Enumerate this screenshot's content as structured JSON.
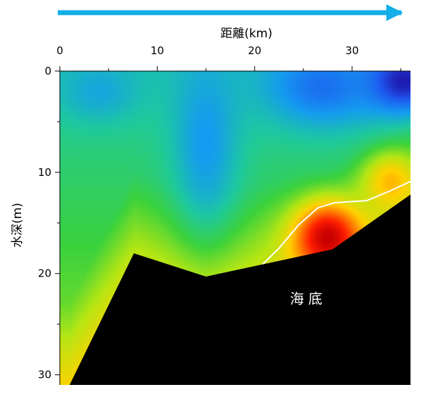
{
  "chart_data": {
    "type": "heatmap",
    "title": "",
    "xlabel": "距離(km)",
    "ylabel": "水深(m)",
    "xlim": [
      0,
      36
    ],
    "ylim": [
      0,
      31
    ],
    "x_ticks": [
      0,
      10,
      20,
      30
    ],
    "y_ticks": [
      0,
      10,
      20,
      30
    ],
    "x_axis_position": "top",
    "y_axis_inverted": true,
    "grid": false,
    "legend": "none",
    "direction_arrow": {
      "color": "#12aee8",
      "points": "right"
    },
    "annotations": [
      {
        "text": "海底",
        "x": 25.5,
        "y": 22.5
      }
    ],
    "seafloor": {
      "color": "#000000",
      "profile": [
        {
          "distance": 1.0,
          "depth": 31.0
        },
        {
          "distance": 7.6,
          "depth": 18.0
        },
        {
          "distance": 15.0,
          "depth": 20.3
        },
        {
          "distance": 28.0,
          "depth": 17.6
        },
        {
          "distance": 36.0,
          "depth": 12.2
        }
      ]
    },
    "contour_line": {
      "color": "#ffffff",
      "points": [
        {
          "distance": 20.8,
          "depth": 19.1
        },
        {
          "distance": 22.5,
          "depth": 17.5
        },
        {
          "distance": 24.5,
          "depth": 15.2
        },
        {
          "distance": 26.5,
          "depth": 13.5
        },
        {
          "distance": 28.2,
          "depth": 13.0
        },
        {
          "distance": 31.5,
          "depth": 12.8
        },
        {
          "distance": 34.0,
          "depth": 11.8
        },
        {
          "distance": 36.0,
          "depth": 10.9
        }
      ]
    },
    "colormap": [
      "#1e0aa0",
      "#1e5af0",
      "#149bf0",
      "#1ec8a0",
      "#3cd23c",
      "#b4e614",
      "#ffd200",
      "#ff7800",
      "#ff1e00",
      "#c80000"
    ],
    "field_features": [
      {
        "kind": "low",
        "distance": 35.0,
        "depth": 1.0,
        "level": 0.0,
        "spread_km": 4.0,
        "spread_m": 3.0
      },
      {
        "kind": "low",
        "distance": 27.0,
        "depth": 1.5,
        "level": 0.15,
        "spread_km": 6.0,
        "spread_m": 4.0
      },
      {
        "kind": "low",
        "distance": 15.0,
        "depth": 7.0,
        "level": 0.22,
        "spread_km": 3.5,
        "spread_m": 9.0
      },
      {
        "kind": "low",
        "distance": 4.0,
        "depth": 2.0,
        "level": 0.25,
        "spread_km": 4.0,
        "spread_m": 3.0
      },
      {
        "kind": "high",
        "distance": 27.5,
        "depth": 16.5,
        "level": 1.0,
        "spread_km": 3.5,
        "spread_m": 3.5
      },
      {
        "kind": "high",
        "distance": 34.0,
        "depth": 11.0,
        "level": 0.7,
        "spread_km": 3.0,
        "spread_m": 3.0
      }
    ]
  }
}
